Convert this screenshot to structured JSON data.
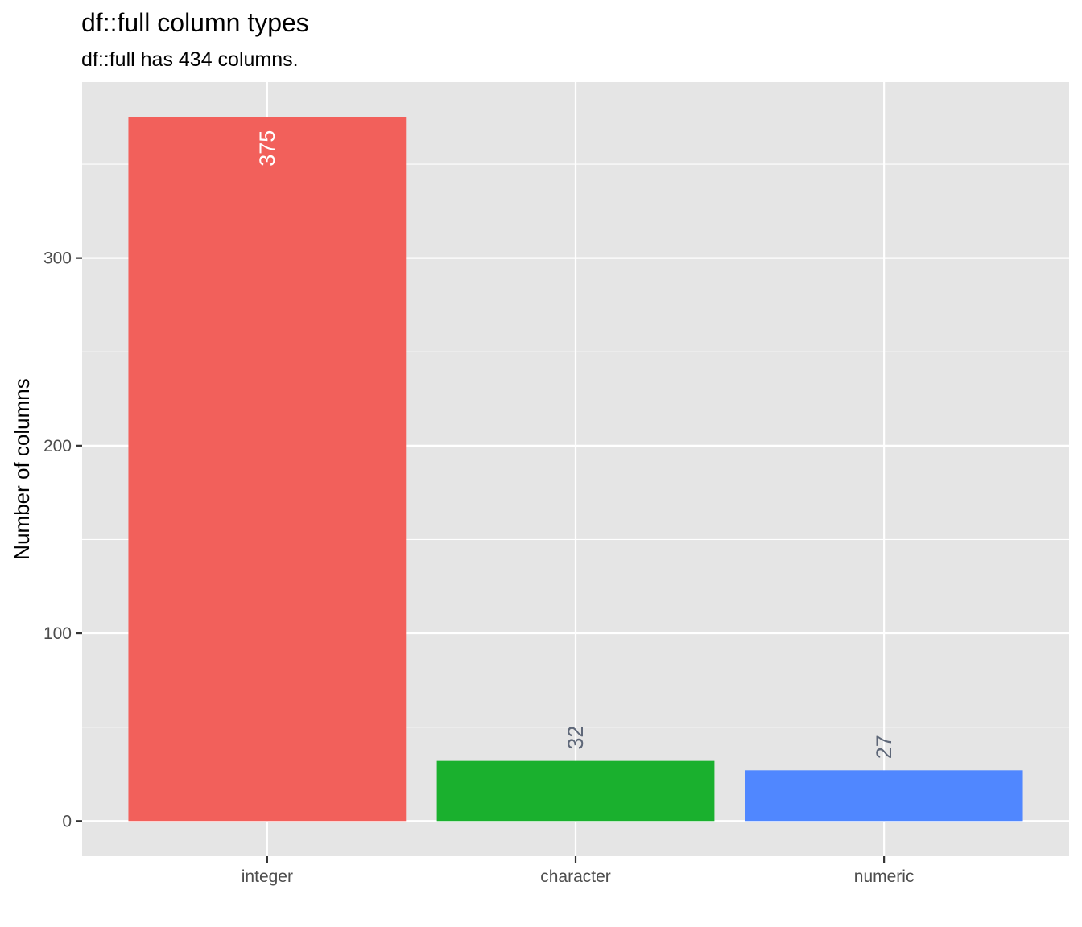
{
  "chart_data": {
    "type": "bar",
    "title": "df::full column types",
    "subtitle": "df::full has 434 columns.",
    "xlabel": "",
    "ylabel": "Number of columns",
    "categories": [
      "integer",
      "character",
      "numeric"
    ],
    "values": [
      375,
      32,
      27
    ],
    "data_labels": [
      "375",
      "32",
      "27"
    ],
    "colors": [
      "#F2605B",
      "#1AB02E",
      "#5087FF"
    ],
    "label_colors": [
      "#FFFFFF",
      "#5E6778",
      "#5E6778"
    ],
    "ylim": [
      -18.75,
      393.75
    ],
    "yticks": [
      0,
      100,
      200,
      300
    ],
    "ytick_labels": [
      "0",
      "100",
      "200",
      "300"
    ],
    "grid": true,
    "panel_background": "#E5E5E5",
    "gridline_color": "#FFFFFF",
    "legend": "none"
  }
}
